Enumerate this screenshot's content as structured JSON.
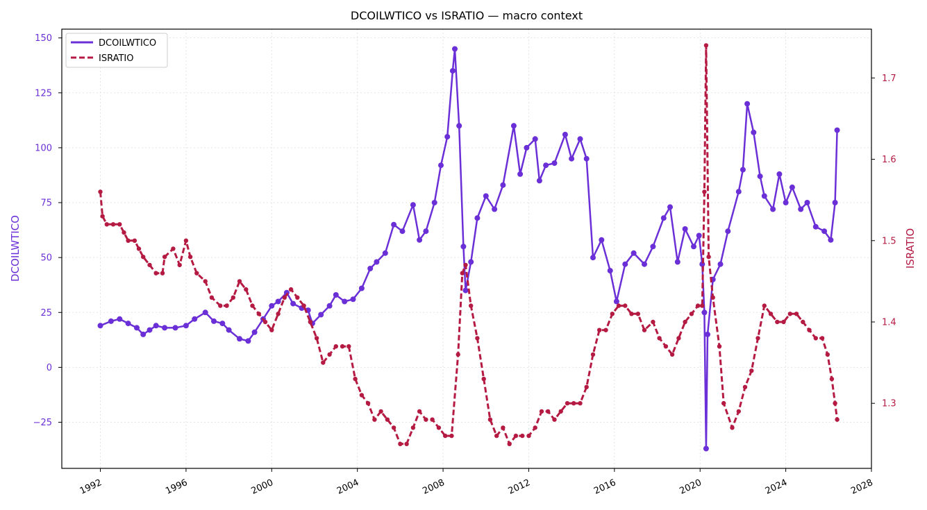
{
  "chart_data": {
    "type": "line",
    "title": "DCOILWTICO vs ISRATIO — macro context",
    "xlabel": "",
    "x_axis": {
      "min": 1990.2,
      "max": 2028,
      "ticks": [
        1992,
        1996,
        2000,
        2004,
        2008,
        2012,
        2016,
        2020,
        2024,
        2028
      ]
    },
    "y_left": {
      "label": "DCOILWTICO",
      "min": -46,
      "max": 154,
      "ticks": [
        -25,
        0,
        25,
        50,
        75,
        100,
        125,
        150
      ],
      "color": "#6a2fd6"
    },
    "y_right": {
      "label": "ISRATIO",
      "min": 1.22,
      "max": 1.76,
      "ticks": [
        1.3,
        1.4,
        1.5,
        1.6,
        1.7
      ],
      "color": "#b51a43"
    },
    "grid": true,
    "legend": "top-left",
    "series": [
      {
        "name": "DCOILWTICO",
        "axis": "left",
        "style": "solid",
        "color": "#6a2fd6",
        "points": [
          [
            1992.0,
            19
          ],
          [
            1992.5,
            21
          ],
          [
            1992.9,
            22
          ],
          [
            1993.3,
            20
          ],
          [
            1993.7,
            18
          ],
          [
            1994.0,
            15
          ],
          [
            1994.3,
            17
          ],
          [
            1994.6,
            19
          ],
          [
            1995.0,
            18
          ],
          [
            1995.5,
            18
          ],
          [
            1996.0,
            19
          ],
          [
            1996.4,
            22
          ],
          [
            1996.9,
            25
          ],
          [
            1997.3,
            21
          ],
          [
            1997.7,
            20
          ],
          [
            1998.0,
            17
          ],
          [
            1998.5,
            13
          ],
          [
            1998.9,
            12
          ],
          [
            1999.2,
            16
          ],
          [
            1999.6,
            22
          ],
          [
            2000.0,
            28
          ],
          [
            2000.3,
            30
          ],
          [
            2000.7,
            34
          ],
          [
            2001.0,
            29
          ],
          [
            2001.4,
            27
          ],
          [
            2001.7,
            26
          ],
          [
            2001.9,
            20
          ],
          [
            2002.3,
            24
          ],
          [
            2002.7,
            28
          ],
          [
            2003.0,
            33
          ],
          [
            2003.4,
            30
          ],
          [
            2003.8,
            31
          ],
          [
            2004.2,
            36
          ],
          [
            2004.6,
            45
          ],
          [
            2004.9,
            48
          ],
          [
            2005.3,
            52
          ],
          [
            2005.7,
            65
          ],
          [
            2006.1,
            62
          ],
          [
            2006.6,
            74
          ],
          [
            2006.9,
            58
          ],
          [
            2007.2,
            62
          ],
          [
            2007.6,
            75
          ],
          [
            2007.9,
            92
          ],
          [
            2008.2,
            105
          ],
          [
            2008.45,
            135
          ],
          [
            2008.55,
            145
          ],
          [
            2008.75,
            110
          ],
          [
            2008.95,
            55
          ],
          [
            2009.05,
            35
          ],
          [
            2009.3,
            48
          ],
          [
            2009.6,
            68
          ],
          [
            2010.0,
            78
          ],
          [
            2010.4,
            72
          ],
          [
            2010.8,
            83
          ],
          [
            2011.3,
            110
          ],
          [
            2011.6,
            88
          ],
          [
            2011.9,
            100
          ],
          [
            2012.3,
            104
          ],
          [
            2012.5,
            85
          ],
          [
            2012.8,
            92
          ],
          [
            2013.2,
            93
          ],
          [
            2013.7,
            106
          ],
          [
            2014.0,
            95
          ],
          [
            2014.4,
            104
          ],
          [
            2014.7,
            95
          ],
          [
            2015.0,
            50
          ],
          [
            2015.4,
            58
          ],
          [
            2015.8,
            44
          ],
          [
            2016.1,
            30
          ],
          [
            2016.5,
            47
          ],
          [
            2016.9,
            52
          ],
          [
            2017.4,
            47
          ],
          [
            2017.8,
            55
          ],
          [
            2018.3,
            68
          ],
          [
            2018.6,
            73
          ],
          [
            2018.95,
            48
          ],
          [
            2019.3,
            63
          ],
          [
            2019.7,
            55
          ],
          [
            2019.95,
            60
          ],
          [
            2020.1,
            47
          ],
          [
            2020.2,
            25
          ],
          [
            2020.28,
            -37
          ],
          [
            2020.35,
            15
          ],
          [
            2020.6,
            40
          ],
          [
            2020.95,
            47
          ],
          [
            2021.3,
            62
          ],
          [
            2021.8,
            80
          ],
          [
            2022.0,
            90
          ],
          [
            2022.2,
            120
          ],
          [
            2022.5,
            107
          ],
          [
            2022.8,
            87
          ],
          [
            2023.0,
            78
          ],
          [
            2023.4,
            72
          ],
          [
            2023.7,
            88
          ],
          [
            2024.0,
            75
          ],
          [
            2024.3,
            82
          ],
          [
            2024.7,
            72
          ],
          [
            2025.0,
            75
          ],
          [
            2025.4,
            64
          ],
          [
            2025.8,
            62
          ],
          [
            2026.1,
            58
          ],
          [
            2026.3,
            75
          ],
          [
            2026.4,
            108
          ]
        ]
      },
      {
        "name": "ISRATIO",
        "axis": "right",
        "style": "dashed",
        "color": "#b51a43",
        "points": [
          [
            1992.0,
            1.56
          ],
          [
            1992.1,
            1.53
          ],
          [
            1992.3,
            1.52
          ],
          [
            1992.6,
            1.52
          ],
          [
            1992.9,
            1.52
          ],
          [
            1993.1,
            1.51
          ],
          [
            1993.3,
            1.5
          ],
          [
            1993.6,
            1.5
          ],
          [
            1993.8,
            1.49
          ],
          [
            1994.0,
            1.48
          ],
          [
            1994.3,
            1.47
          ],
          [
            1994.6,
            1.46
          ],
          [
            1994.9,
            1.46
          ],
          [
            1995.0,
            1.48
          ],
          [
            1995.4,
            1.49
          ],
          [
            1995.7,
            1.47
          ],
          [
            1996.0,
            1.5
          ],
          [
            1996.2,
            1.48
          ],
          [
            1996.5,
            1.46
          ],
          [
            1996.9,
            1.45
          ],
          [
            1997.2,
            1.43
          ],
          [
            1997.6,
            1.42
          ],
          [
            1997.9,
            1.42
          ],
          [
            1998.2,
            1.43
          ],
          [
            1998.5,
            1.45
          ],
          [
            1998.8,
            1.44
          ],
          [
            1999.1,
            1.42
          ],
          [
            1999.4,
            1.41
          ],
          [
            1999.7,
            1.4
          ],
          [
            2000.0,
            1.39
          ],
          [
            2000.3,
            1.41
          ],
          [
            2000.6,
            1.43
          ],
          [
            2000.9,
            1.44
          ],
          [
            2001.2,
            1.43
          ],
          [
            2001.5,
            1.42
          ],
          [
            2001.8,
            1.4
          ],
          [
            2002.1,
            1.38
          ],
          [
            2002.4,
            1.35
          ],
          [
            2002.7,
            1.36
          ],
          [
            2003.0,
            1.37
          ],
          [
            2003.3,
            1.37
          ],
          [
            2003.6,
            1.37
          ],
          [
            2003.9,
            1.33
          ],
          [
            2004.2,
            1.31
          ],
          [
            2004.5,
            1.3
          ],
          [
            2004.8,
            1.28
          ],
          [
            2005.1,
            1.29
          ],
          [
            2005.4,
            1.28
          ],
          [
            2005.7,
            1.27
          ],
          [
            2006.0,
            1.25
          ],
          [
            2006.3,
            1.25
          ],
          [
            2006.6,
            1.27
          ],
          [
            2006.9,
            1.29
          ],
          [
            2007.2,
            1.28
          ],
          [
            2007.5,
            1.28
          ],
          [
            2007.8,
            1.27
          ],
          [
            2008.1,
            1.26
          ],
          [
            2008.4,
            1.26
          ],
          [
            2008.7,
            1.36
          ],
          [
            2008.9,
            1.46
          ],
          [
            2009.05,
            1.47
          ],
          [
            2009.3,
            1.42
          ],
          [
            2009.6,
            1.38
          ],
          [
            2009.9,
            1.33
          ],
          [
            2010.2,
            1.28
          ],
          [
            2010.5,
            1.26
          ],
          [
            2010.8,
            1.27
          ],
          [
            2011.1,
            1.25
          ],
          [
            2011.4,
            1.26
          ],
          [
            2011.7,
            1.26
          ],
          [
            2012.0,
            1.26
          ],
          [
            2012.3,
            1.27
          ],
          [
            2012.6,
            1.29
          ],
          [
            2012.9,
            1.29
          ],
          [
            2013.2,
            1.28
          ],
          [
            2013.5,
            1.29
          ],
          [
            2013.8,
            1.3
          ],
          [
            2014.1,
            1.3
          ],
          [
            2014.4,
            1.3
          ],
          [
            2014.7,
            1.32
          ],
          [
            2015.0,
            1.36
          ],
          [
            2015.3,
            1.39
          ],
          [
            2015.6,
            1.39
          ],
          [
            2015.9,
            1.41
          ],
          [
            2016.2,
            1.42
          ],
          [
            2016.5,
            1.42
          ],
          [
            2016.8,
            1.41
          ],
          [
            2017.1,
            1.41
          ],
          [
            2017.4,
            1.39
          ],
          [
            2017.8,
            1.4
          ],
          [
            2018.1,
            1.38
          ],
          [
            2018.4,
            1.37
          ],
          [
            2018.7,
            1.36
          ],
          [
            2019.0,
            1.38
          ],
          [
            2019.3,
            1.4
          ],
          [
            2019.6,
            1.41
          ],
          [
            2019.9,
            1.42
          ],
          [
            2020.1,
            1.42
          ],
          [
            2020.2,
            1.56
          ],
          [
            2020.28,
            1.74
          ],
          [
            2020.4,
            1.48
          ],
          [
            2020.6,
            1.43
          ],
          [
            2020.9,
            1.37
          ],
          [
            2021.1,
            1.3
          ],
          [
            2021.5,
            1.27
          ],
          [
            2021.8,
            1.29
          ],
          [
            2022.1,
            1.32
          ],
          [
            2022.4,
            1.34
          ],
          [
            2022.7,
            1.38
          ],
          [
            2023.0,
            1.42
          ],
          [
            2023.3,
            1.41
          ],
          [
            2023.6,
            1.4
          ],
          [
            2023.9,
            1.4
          ],
          [
            2024.2,
            1.41
          ],
          [
            2024.5,
            1.41
          ],
          [
            2024.8,
            1.4
          ],
          [
            2025.1,
            1.39
          ],
          [
            2025.4,
            1.38
          ],
          [
            2025.7,
            1.38
          ],
          [
            2025.95,
            1.36
          ],
          [
            2026.15,
            1.33
          ],
          [
            2026.3,
            1.3
          ],
          [
            2026.4,
            1.28
          ]
        ]
      }
    ]
  }
}
